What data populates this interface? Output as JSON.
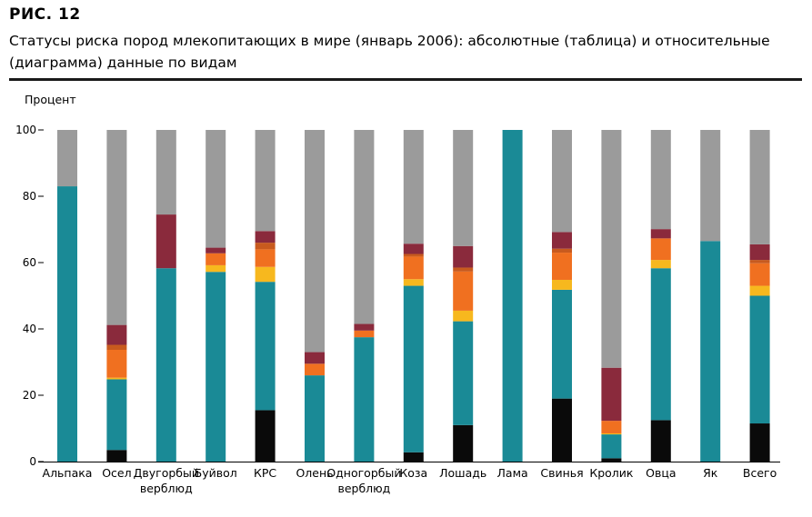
{
  "figure": {
    "label": "РИС.  12",
    "title": "Статусы риска пород млекопитающих в мире (январь 2006): абсолютные (таблица) и относительные (диаграмма) данные по видам"
  },
  "chart_data": {
    "type": "bar",
    "stacked": true,
    "ylabel": "Процент",
    "ylim": [
      0,
      100
    ],
    "yticks": [
      0,
      20,
      40,
      60,
      80,
      100
    ],
    "grid": false,
    "categories": [
      [
        "Альпака"
      ],
      [
        "Осел"
      ],
      [
        "Двугорбый",
        "верблюд"
      ],
      [
        "Буйвол"
      ],
      [
        "КРС"
      ],
      [
        "Олень"
      ],
      [
        "Одногорбый",
        "верблюд"
      ],
      [
        "Коза"
      ],
      [
        "Лошадь"
      ],
      [
        "Лама"
      ],
      [
        "Свинья"
      ],
      [
        "Кролик"
      ],
      [
        "Овца"
      ],
      [
        "Як"
      ],
      [
        "Всего"
      ]
    ],
    "series": [
      {
        "color": "#0a0a0a",
        "values": [
          0,
          3.5,
          0,
          0,
          15.5,
          0,
          0,
          2.8,
          11,
          0,
          19,
          1,
          12.5,
          0,
          11.5
        ]
      },
      {
        "color": "#1a8a96",
        "values": [
          83,
          21.3,
          58.3,
          57.2,
          38.7,
          26,
          37.5,
          50.2,
          31.3,
          100,
          32.8,
          7.2,
          45.8,
          66.5,
          38.5
        ]
      },
      {
        "color": "#f7b81e",
        "values": [
          0,
          0.5,
          0,
          2,
          4.5,
          0,
          0,
          2,
          3.2,
          0,
          3,
          0.3,
          2.5,
          0,
          3
        ]
      },
      {
        "color": "#f07020",
        "values": [
          0,
          8.4,
          0,
          3.6,
          5.3,
          3.5,
          2,
          6.8,
          11.8,
          0,
          8.2,
          3.8,
          6.5,
          0,
          6.8
        ]
      },
      {
        "color": "#c85a1e",
        "values": [
          0,
          1.5,
          0,
          0,
          2,
          0,
          0,
          0.8,
          1.2,
          0,
          1.2,
          0,
          0,
          0,
          1
        ]
      },
      {
        "color": "#8a2a3c",
        "values": [
          0,
          6,
          16.2,
          1.7,
          3.5,
          3.5,
          2,
          3.1,
          6.5,
          0,
          5,
          16,
          2.8,
          0,
          4.7
        ]
      },
      {
        "color": "#9b9b9b",
        "values": [
          17,
          58.8,
          25.5,
          35.5,
          30.5,
          67,
          58.5,
          34.3,
          35,
          0,
          30.8,
          71.7,
          29.9,
          33.5,
          34.5
        ]
      }
    ]
  }
}
